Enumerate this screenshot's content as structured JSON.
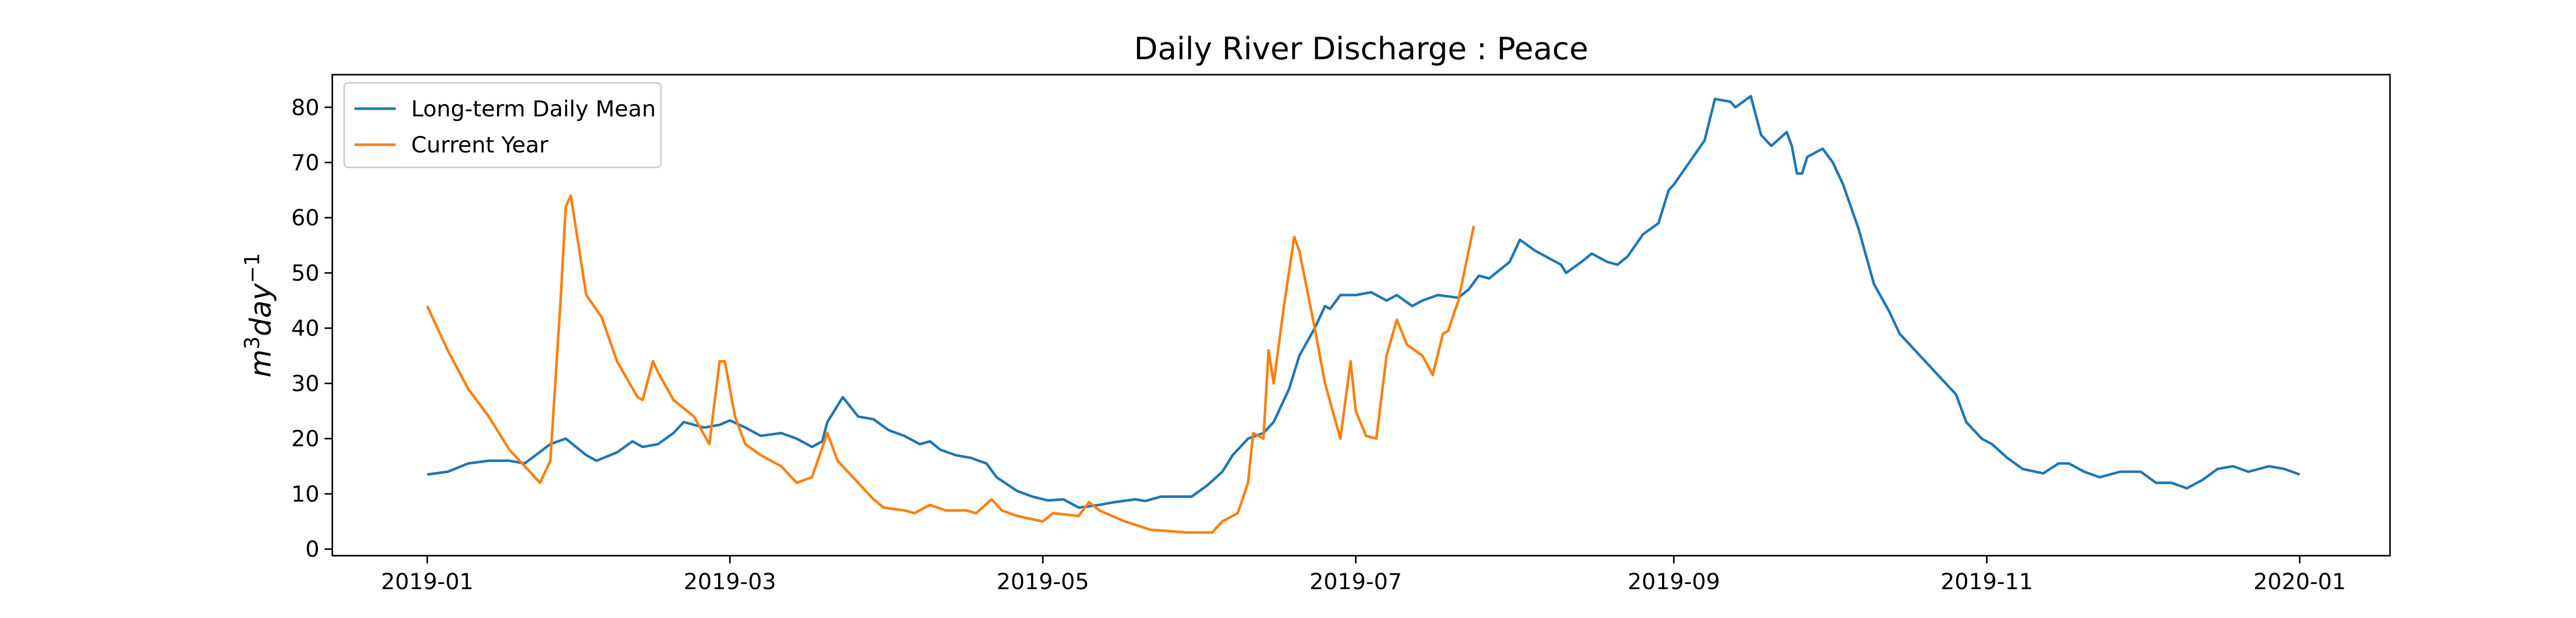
{
  "chart_data": {
    "type": "line",
    "title": "Daily River Discharge : Peace",
    "y_label_parts": [
      "m",
      "3",
      "day",
      "−1"
    ],
    "xlim": [
      -18.5,
      382.6
    ],
    "xticks": [
      {
        "value": 0,
        "label": "2019-01"
      },
      {
        "value": 59,
        "label": "2019-03"
      },
      {
        "value": 120,
        "label": "2019-05"
      },
      {
        "value": 181,
        "label": "2019-07"
      },
      {
        "value": 243,
        "label": "2019-09"
      },
      {
        "value": 304,
        "label": "2019-11"
      },
      {
        "value": 365,
        "label": "2020-01"
      }
    ],
    "ylim": [
      -1.2,
      85.9
    ],
    "yticks": [
      0,
      10,
      20,
      30,
      40,
      50,
      60,
      70,
      80
    ],
    "legend": "upper left",
    "series": [
      {
        "name": "Long-term Daily Mean",
        "color": "#1f77b4",
        "x": [
          0,
          4,
          8,
          12,
          16,
          19,
          24,
          27,
          31,
          33,
          37,
          40,
          42,
          45,
          48,
          50,
          54,
          57,
          59,
          62,
          65,
          69,
          72,
          75,
          77,
          78,
          81,
          84,
          87,
          90,
          93,
          96,
          98,
          100,
          103,
          106,
          109,
          111,
          115,
          118,
          121,
          124,
          127,
          131,
          134,
          138,
          140,
          143,
          146,
          149,
          152,
          155,
          157,
          160,
          163,
          165,
          168,
          170,
          173,
          175,
          176,
          178,
          181,
          184,
          187,
          189,
          192,
          194,
          197,
          201,
          203,
          205,
          207,
          211,
          213,
          216,
          218,
          221,
          222,
          225,
          227,
          230,
          232,
          234,
          237,
          240,
          242,
          243,
          246,
          249,
          251,
          254,
          255,
          258,
          260,
          262,
          265,
          266,
          267,
          268,
          269,
          272,
          274,
          276,
          279,
          282,
          285,
          287,
          290,
          291,
          293,
          296,
          298,
          300,
          303,
          305,
          308,
          311,
          315,
          318,
          320,
          323,
          326,
          330,
          334,
          337,
          340,
          343,
          346,
          349,
          352,
          355,
          359,
          362,
          365
        ],
        "values": [
          13.5,
          14,
          15.5,
          16,
          16,
          15.5,
          19,
          20,
          17,
          16,
          17.5,
          19.5,
          18.5,
          19,
          21,
          23,
          22,
          22.5,
          23.3,
          22,
          20.5,
          21,
          20,
          18.5,
          19.5,
          23,
          27.5,
          24,
          23.5,
          21.5,
          20.5,
          19,
          19.5,
          18,
          17,
          16.5,
          15.5,
          13,
          10.5,
          9.5,
          8.8,
          9,
          7.5,
          8,
          8.5,
          9,
          8.7,
          9.5,
          9.5,
          9.5,
          11.5,
          14,
          17,
          20,
          21,
          23,
          29,
          35,
          40,
          44,
          43.5,
          46,
          46,
          46.5,
          45,
          46,
          44,
          45,
          46,
          45.5,
          47,
          49.5,
          49,
          52,
          56,
          54,
          53,
          51.5,
          50,
          52,
          53.5,
          52,
          51.5,
          53,
          57,
          59,
          65,
          66,
          70,
          74,
          81.5,
          81,
          80,
          82,
          75,
          73,
          75.5,
          73,
          68,
          68,
          71,
          72.5,
          70,
          66,
          58,
          48,
          43,
          39,
          36,
          35,
          33,
          30,
          28,
          23,
          20,
          19,
          16.5,
          14.5,
          13.7,
          15.5,
          15.5,
          14,
          13,
          14,
          14,
          12,
          12,
          11,
          12.5,
          14.5,
          15,
          14,
          15,
          14.5,
          13.5
        ]
      },
      {
        "name": "Current Year",
        "color": "#ff7f0e",
        "x": [
          0,
          4,
          8,
          12,
          16,
          20,
          22,
          24,
          26,
          27,
          28,
          30,
          31,
          34,
          37,
          41,
          42,
          44,
          45,
          48,
          52,
          55,
          57,
          58,
          60,
          62,
          65,
          69,
          72,
          75,
          78,
          80,
          84,
          87,
          89,
          93,
          95,
          98,
          101,
          105,
          107,
          110,
          112,
          115,
          120,
          122,
          127,
          129,
          131,
          136,
          141,
          148,
          153,
          155,
          158,
          160,
          161,
          163,
          164,
          165,
          167,
          169,
          170,
          173,
          175,
          178,
          180,
          181,
          183,
          185,
          187,
          189,
          191,
          194,
          196,
          198,
          199,
          201,
          204
        ],
        "values": [
          44,
          36,
          29,
          24,
          18,
          14,
          12,
          16,
          45,
          62,
          64,
          52,
          46,
          42,
          34,
          27.5,
          27,
          34,
          32,
          27,
          24,
          19,
          34,
          34,
          24,
          19,
          17,
          15,
          12,
          13,
          21,
          16,
          12,
          9,
          7.5,
          7,
          6.5,
          8,
          7,
          7,
          6.5,
          9,
          7,
          6,
          5,
          6.5,
          6,
          8.5,
          7,
          5,
          3.5,
          3,
          3,
          5,
          6.5,
          12,
          21,
          20,
          36,
          30,
          44,
          56.5,
          54,
          40,
          30,
          20,
          34,
          25,
          20.5,
          20,
          35,
          41.5,
          37,
          35,
          31.5,
          39,
          39.5,
          45,
          58.5
        ]
      }
    ]
  }
}
